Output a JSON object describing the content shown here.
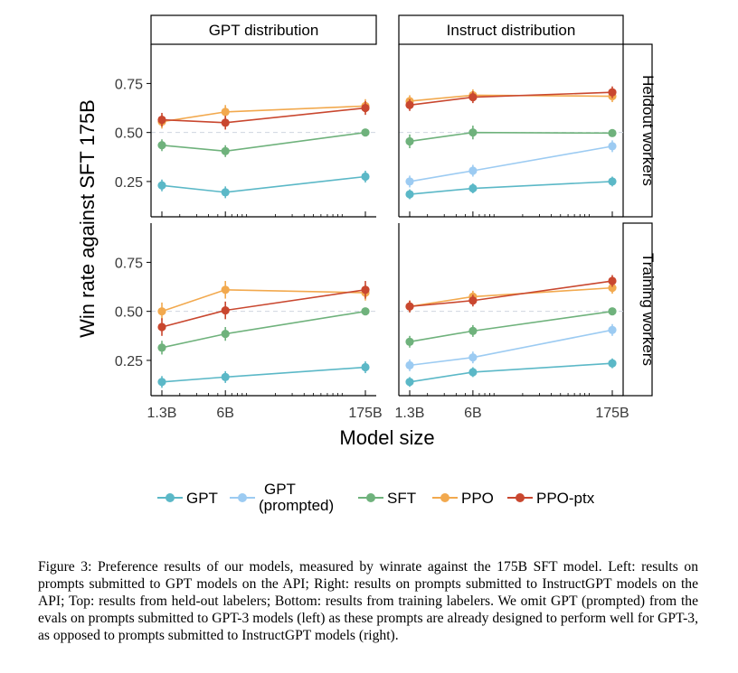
{
  "chart_data": {
    "type": "line",
    "ylabel": "Win rate against SFT 175B",
    "xlabel": "Model size",
    "x_scale": "log",
    "x_ticks": [
      1.3,
      6,
      175
    ],
    "x_tick_labels": [
      "1.3B",
      "6B",
      "175B"
    ],
    "y_ticks": [
      0.25,
      0.5,
      0.75
    ],
    "y_tick_labels": [
      "0.25",
      "0.50",
      "0.75"
    ],
    "ylim": [
      0.07,
      0.95
    ],
    "reference_line": 0.5,
    "columns": [
      "GPT distribution",
      "Instruct distribution"
    ],
    "rows": [
      "Heldout workers",
      "Training workers"
    ],
    "legend": [
      {
        "key": "GPT",
        "label_lines": [
          "GPT"
        ],
        "color": "#5BB8C7"
      },
      {
        "key": "GPTp",
        "label_lines": [
          "GPT",
          "(prompted)"
        ],
        "color": "#9CCBF2"
      },
      {
        "key": "SFT",
        "label_lines": [
          "SFT"
        ],
        "color": "#6FB27C"
      },
      {
        "key": "PPO",
        "label_lines": [
          "PPO"
        ],
        "color": "#F2A94E"
      },
      {
        "key": "PPOptx",
        "label_lines": [
          "PPO-ptx"
        ],
        "color": "#C9472F"
      }
    ],
    "panels": [
      {
        "row": 0,
        "col": 0,
        "series": [
          {
            "key": "SFT",
            "x": [
              1.3,
              6,
              175
            ],
            "y": [
              0.435,
              0.405,
              0.5
            ],
            "err": [
              0.03,
              0.03,
              0.015
            ]
          },
          {
            "key": "GPT",
            "x": [
              1.3,
              6,
              175
            ],
            "y": [
              0.23,
              0.195,
              0.275
            ],
            "err": [
              0.03,
              0.03,
              0.03
            ]
          },
          {
            "key": "PPO",
            "x": [
              1.3,
              6,
              175
            ],
            "y": [
              0.555,
              0.605,
              0.635
            ],
            "err": [
              0.035,
              0.035,
              0.035
            ]
          },
          {
            "key": "PPOptx",
            "x": [
              1.3,
              6,
              175
            ],
            "y": [
              0.565,
              0.55,
              0.625
            ],
            "err": [
              0.035,
              0.035,
              0.035
            ]
          }
        ]
      },
      {
        "row": 0,
        "col": 1,
        "series": [
          {
            "key": "GPT",
            "x": [
              1.3,
              6,
              175
            ],
            "y": [
              0.185,
              0.215,
              0.25
            ],
            "err": [
              0.025,
              0.025,
              0.025
            ]
          },
          {
            "key": "GPTp",
            "x": [
              1.3,
              6,
              175
            ],
            "y": [
              0.25,
              0.305,
              0.43
            ],
            "err": [
              0.03,
              0.03,
              0.03
            ]
          },
          {
            "key": "SFT",
            "x": [
              1.3,
              6,
              175
            ],
            "y": [
              0.455,
              0.5,
              0.497
            ],
            "err": [
              0.035,
              0.035,
              0.015
            ]
          },
          {
            "key": "PPO",
            "x": [
              1.3,
              6,
              175
            ],
            "y": [
              0.66,
              0.69,
              0.685
            ],
            "err": [
              0.03,
              0.03,
              0.03
            ]
          },
          {
            "key": "PPOptx",
            "x": [
              1.3,
              6,
              175
            ],
            "y": [
              0.64,
              0.68,
              0.705
            ],
            "err": [
              0.03,
              0.03,
              0.03
            ]
          }
        ]
      },
      {
        "row": 1,
        "col": 0,
        "series": [
          {
            "key": "SFT",
            "x": [
              1.3,
              6,
              175
            ],
            "y": [
              0.315,
              0.385,
              0.5
            ],
            "err": [
              0.035,
              0.035,
              0.015
            ]
          },
          {
            "key": "GPT",
            "x": [
              1.3,
              6,
              175
            ],
            "y": [
              0.14,
              0.165,
              0.215
            ],
            "err": [
              0.03,
              0.03,
              0.03
            ]
          },
          {
            "key": "PPO",
            "x": [
              1.3,
              6,
              175
            ],
            "y": [
              0.5,
              0.61,
              0.595
            ],
            "err": [
              0.045,
              0.045,
              0.04
            ]
          },
          {
            "key": "PPOptx",
            "x": [
              1.3,
              6,
              175
            ],
            "y": [
              0.42,
              0.505,
              0.61
            ],
            "err": [
              0.045,
              0.045,
              0.045
            ]
          }
        ]
      },
      {
        "row": 1,
        "col": 1,
        "series": [
          {
            "key": "GPT",
            "x": [
              1.3,
              6,
              175
            ],
            "y": [
              0.14,
              0.19,
              0.235
            ],
            "err": [
              0.025,
              0.025,
              0.025
            ]
          },
          {
            "key": "GPTp",
            "x": [
              1.3,
              6,
              175
            ],
            "y": [
              0.225,
              0.265,
              0.405
            ],
            "err": [
              0.03,
              0.03,
              0.03
            ]
          },
          {
            "key": "SFT",
            "x": [
              1.3,
              6,
              175
            ],
            "y": [
              0.345,
              0.4,
              0.5
            ],
            "err": [
              0.03,
              0.03,
              0.015
            ]
          },
          {
            "key": "PPO",
            "x": [
              1.3,
              6,
              175
            ],
            "y": [
              0.525,
              0.575,
              0.62
            ],
            "err": [
              0.03,
              0.03,
              0.03
            ]
          },
          {
            "key": "PPOptx",
            "x": [
              1.3,
              6,
              175
            ],
            "y": [
              0.525,
              0.555,
              0.655
            ],
            "err": [
              0.03,
              0.03,
              0.03
            ]
          }
        ]
      }
    ]
  },
  "caption": {
    "text": "Figure 3: Preference results of our models, measured by winrate against the 175B SFT model. Left: results on prompts submitted to GPT models on the API; Right: results on prompts submitted to InstructGPT models on the API; Top: results from held-out labelers; Bottom: results from training labelers. We omit GPT (prompted) from the evals on prompts submitted to GPT-3 models (left) as these prompts are already designed to perform well for GPT-3, as opposed to prompts submitted to InstructGPT models (right)."
  }
}
